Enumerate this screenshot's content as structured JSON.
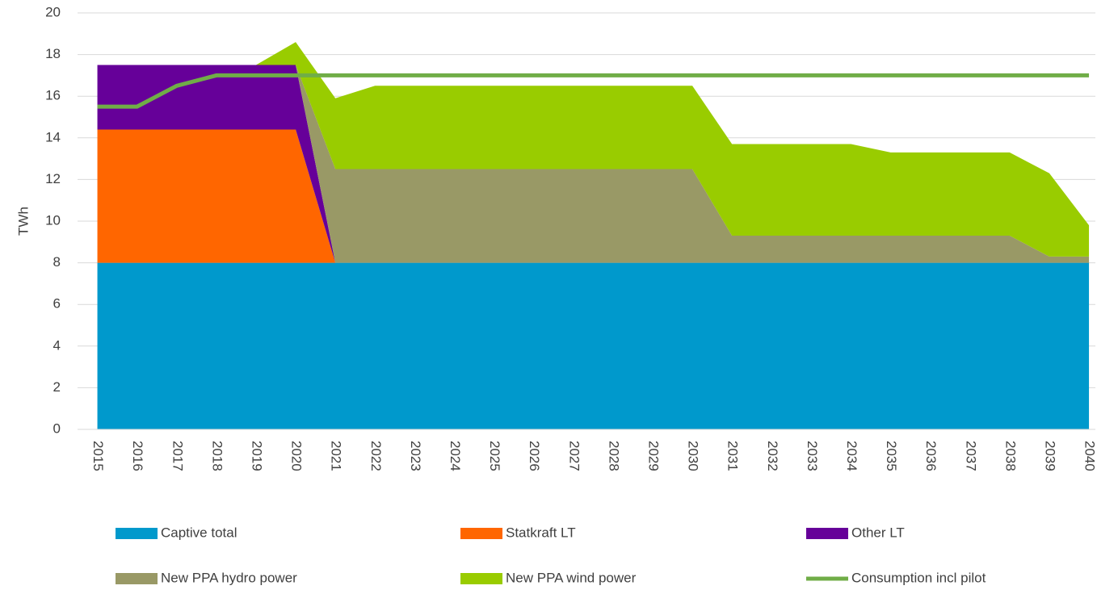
{
  "chart_data": {
    "type": "stacked_area_line",
    "y_label": "TWh",
    "categories": [
      "2015",
      "2016",
      "2017",
      "2018",
      "2019",
      "2020",
      "2021",
      "2022",
      "2023",
      "2024",
      "2025",
      "2026",
      "2027",
      "2028",
      "2029",
      "2030",
      "2031",
      "2032",
      "2033",
      "2034",
      "2035",
      "2036",
      "2037",
      "2038",
      "2039",
      "2040"
    ],
    "series": [
      {
        "name": "Captive total",
        "type": "area",
        "color": "#0099cc",
        "values": [
          8,
          8,
          8,
          8,
          8,
          8,
          8,
          8,
          8,
          8,
          8,
          8,
          8,
          8,
          8,
          8,
          8,
          8,
          8,
          8,
          8,
          8,
          8,
          8,
          8,
          8
        ]
      },
      {
        "name": "Statkraft LT",
        "type": "area",
        "color": "#ff6600",
        "values": [
          6.4,
          6.4,
          6.4,
          6.4,
          6.4,
          6.4,
          0,
          0,
          0,
          0,
          0,
          0,
          0,
          0,
          0,
          0,
          0,
          0,
          0,
          0,
          0,
          0,
          0,
          0,
          0,
          0
        ]
      },
      {
        "name": "Other LT",
        "type": "area",
        "color": "#660099",
        "values": [
          3.1,
          3.1,
          3.1,
          3.1,
          3.1,
          3.1,
          0,
          0,
          0,
          0,
          0,
          0,
          0,
          0,
          0,
          0,
          0,
          0,
          0,
          0,
          0,
          0,
          0,
          0,
          0,
          0
        ]
      },
      {
        "name": "New PPA hydro power",
        "type": "area",
        "color": "#999966",
        "values": [
          0,
          0,
          0,
          0,
          0,
          0,
          4.5,
          4.5,
          4.5,
          4.5,
          4.5,
          4.5,
          4.5,
          4.5,
          4.5,
          4.5,
          1.3,
          1.3,
          1.3,
          1.3,
          1.3,
          1.3,
          1.3,
          1.3,
          0.3,
          0.3
        ]
      },
      {
        "name": "New PPA wind power",
        "type": "area",
        "color": "#99cc00",
        "values": [
          0,
          0,
          0,
          0,
          0,
          1.1,
          3.4,
          4,
          4,
          4,
          4,
          4,
          4,
          4,
          4,
          4,
          4.4,
          4.4,
          4.4,
          4.4,
          4,
          4,
          4,
          4,
          4,
          1.5
        ]
      },
      {
        "name": "Consumption incl pilot",
        "type": "line",
        "color": "#70ad47",
        "values": [
          15.5,
          15.5,
          16.5,
          17,
          17,
          17,
          17,
          17,
          17,
          17,
          17,
          17,
          17,
          17,
          17,
          17,
          17,
          17,
          17,
          17,
          17,
          17,
          17,
          17,
          17,
          17
        ]
      }
    ],
    "ylim": [
      0,
      20
    ],
    "yticks": [
      0,
      2,
      4,
      6,
      8,
      10,
      12,
      14,
      16,
      18,
      20
    ],
    "grid": true
  }
}
